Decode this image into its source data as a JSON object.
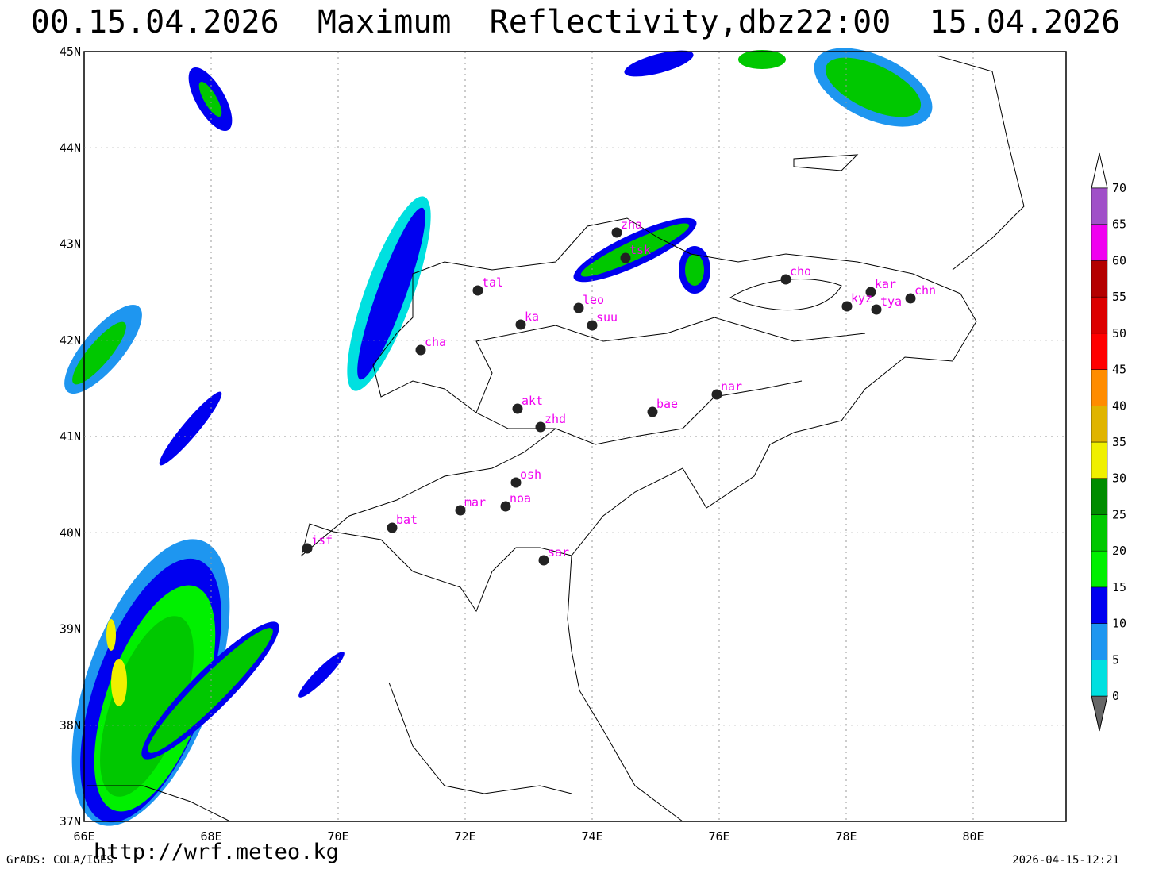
{
  "header": {
    "title": "00.15.04.2026  Maximum  Reflectivity,dbz22:00  15.04.2026"
  },
  "map": {
    "lat_labels": [
      "45N",
      "44N",
      "43N",
      "42N",
      "41N",
      "40N",
      "39N",
      "38N",
      "37N"
    ],
    "lon_labels": [
      "66E",
      "68E",
      "70E",
      "72E",
      "74E",
      "76E",
      "78E",
      "80E"
    ],
    "stations": [
      "zha",
      "tsk",
      "tal",
      "leo",
      "ka",
      "suu",
      "cha",
      "cho",
      "kar",
      "kyz",
      "tya",
      "chn",
      "nar",
      "bae",
      "akt",
      "zhd",
      "osh",
      "noa",
      "mar",
      "bat",
      "isf",
      "sar"
    ]
  },
  "legend": {
    "levels": [
      0,
      5,
      10,
      15,
      20,
      25,
      30,
      35,
      40,
      45,
      50,
      55,
      60,
      65,
      70
    ],
    "colors": [
      "#00e0e0",
      "#1e96f0",
      "#0000f0",
      "#00f000",
      "#00c800",
      "#008c00",
      "#f0f000",
      "#e0b400",
      "#ff8c00",
      "#ff0000",
      "#dc0000",
      "#b40000",
      "#f000f0",
      "#a050c8"
    ]
  },
  "footer": {
    "software": "GrADS: COLA/IGES",
    "url": "http://wrf.meteo.kg",
    "timestamp": "2026-04-15-12:21"
  }
}
